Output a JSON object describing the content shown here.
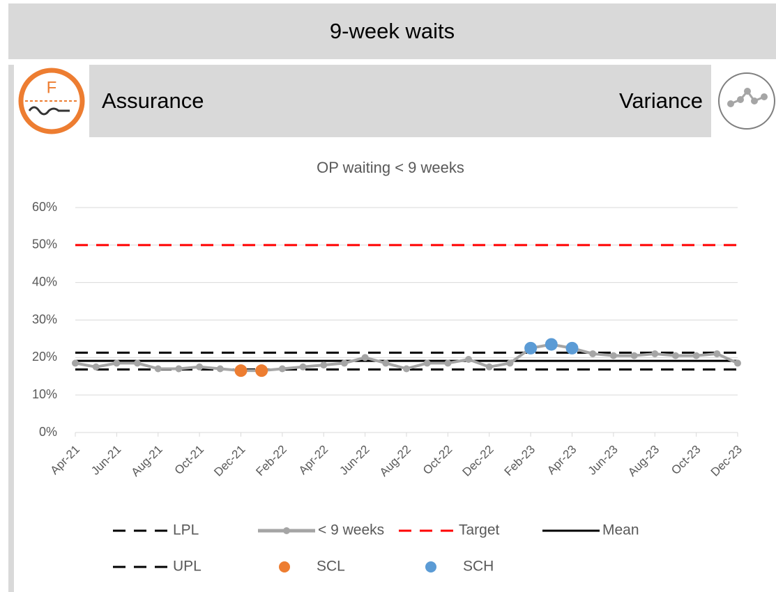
{
  "header": {
    "title": "9-week waits",
    "left": "Assurance",
    "right": "Variance",
    "assurance_icon": "F"
  },
  "chart_data": {
    "type": "line",
    "title": "OP waiting < 9 weeks",
    "categories": [
      "Apr-21",
      null,
      "Jun-21",
      null,
      "Aug-21",
      null,
      "Oct-21",
      null,
      "Dec-21",
      null,
      "Feb-22",
      null,
      "Apr-22",
      null,
      "Jun-22",
      null,
      "Aug-22",
      null,
      "Oct-22",
      null,
      "Dec-22",
      null,
      "Feb-23",
      null,
      "Apr-23",
      null,
      "Jun-23",
      null,
      "Aug-23",
      null,
      "Oct-23",
      null,
      "Dec-23"
    ],
    "ylim": [
      0,
      60
    ],
    "yticks": [
      {
        "value": 0,
        "label": "0%"
      },
      {
        "value": 10,
        "label": "10%"
      },
      {
        "value": 20,
        "label": "20%"
      },
      {
        "value": 30,
        "label": "30%"
      },
      {
        "value": 40,
        "label": "40%"
      },
      {
        "value": 50,
        "label": "50%"
      },
      {
        "value": 60,
        "label": "60%"
      }
    ],
    "grid": true,
    "series": [
      {
        "name": "LPL",
        "kind": "hline",
        "color": "#000000",
        "dash": true,
        "value": 16.8
      },
      {
        "name": "< 9 weeks",
        "kind": "line",
        "color": "#a5a5a5",
        "values": [
          18.5,
          17.5,
          18.5,
          18.5,
          17,
          17,
          17.5,
          17,
          16.5,
          16.5,
          17,
          17.5,
          18,
          18.5,
          20,
          18.5,
          17,
          18.5,
          18.5,
          19.5,
          17.5,
          18.5,
          22.5,
          23.5,
          22.5,
          21,
          20.5,
          20.5,
          21,
          20.5,
          20.5,
          21,
          18.5
        ]
      },
      {
        "name": "Target",
        "kind": "hline",
        "color": "#ff0000",
        "dash": true,
        "value": 50
      },
      {
        "name": "Mean",
        "kind": "hline",
        "color": "#000000",
        "dash": false,
        "value": 19.1
      },
      {
        "name": "UPL",
        "kind": "hline",
        "color": "#000000",
        "dash": true,
        "value": 21.3
      },
      {
        "name": "SCL",
        "kind": "points",
        "color": "#ed7d31",
        "values": [
          null,
          null,
          null,
          null,
          null,
          null,
          null,
          null,
          16.5,
          16.5,
          null,
          null,
          null,
          null,
          null,
          null,
          null,
          null,
          null,
          null,
          null,
          null,
          null,
          null,
          null,
          null,
          null,
          null,
          null,
          null,
          null,
          null,
          null
        ]
      },
      {
        "name": "SCH",
        "kind": "points",
        "color": "#5b9bd5",
        "values": [
          null,
          null,
          null,
          null,
          null,
          null,
          null,
          null,
          null,
          null,
          null,
          null,
          null,
          null,
          null,
          null,
          null,
          null,
          null,
          null,
          null,
          null,
          22.5,
          23.5,
          22.5,
          null,
          null,
          null,
          null,
          null,
          null,
          null,
          null
        ]
      }
    ]
  }
}
